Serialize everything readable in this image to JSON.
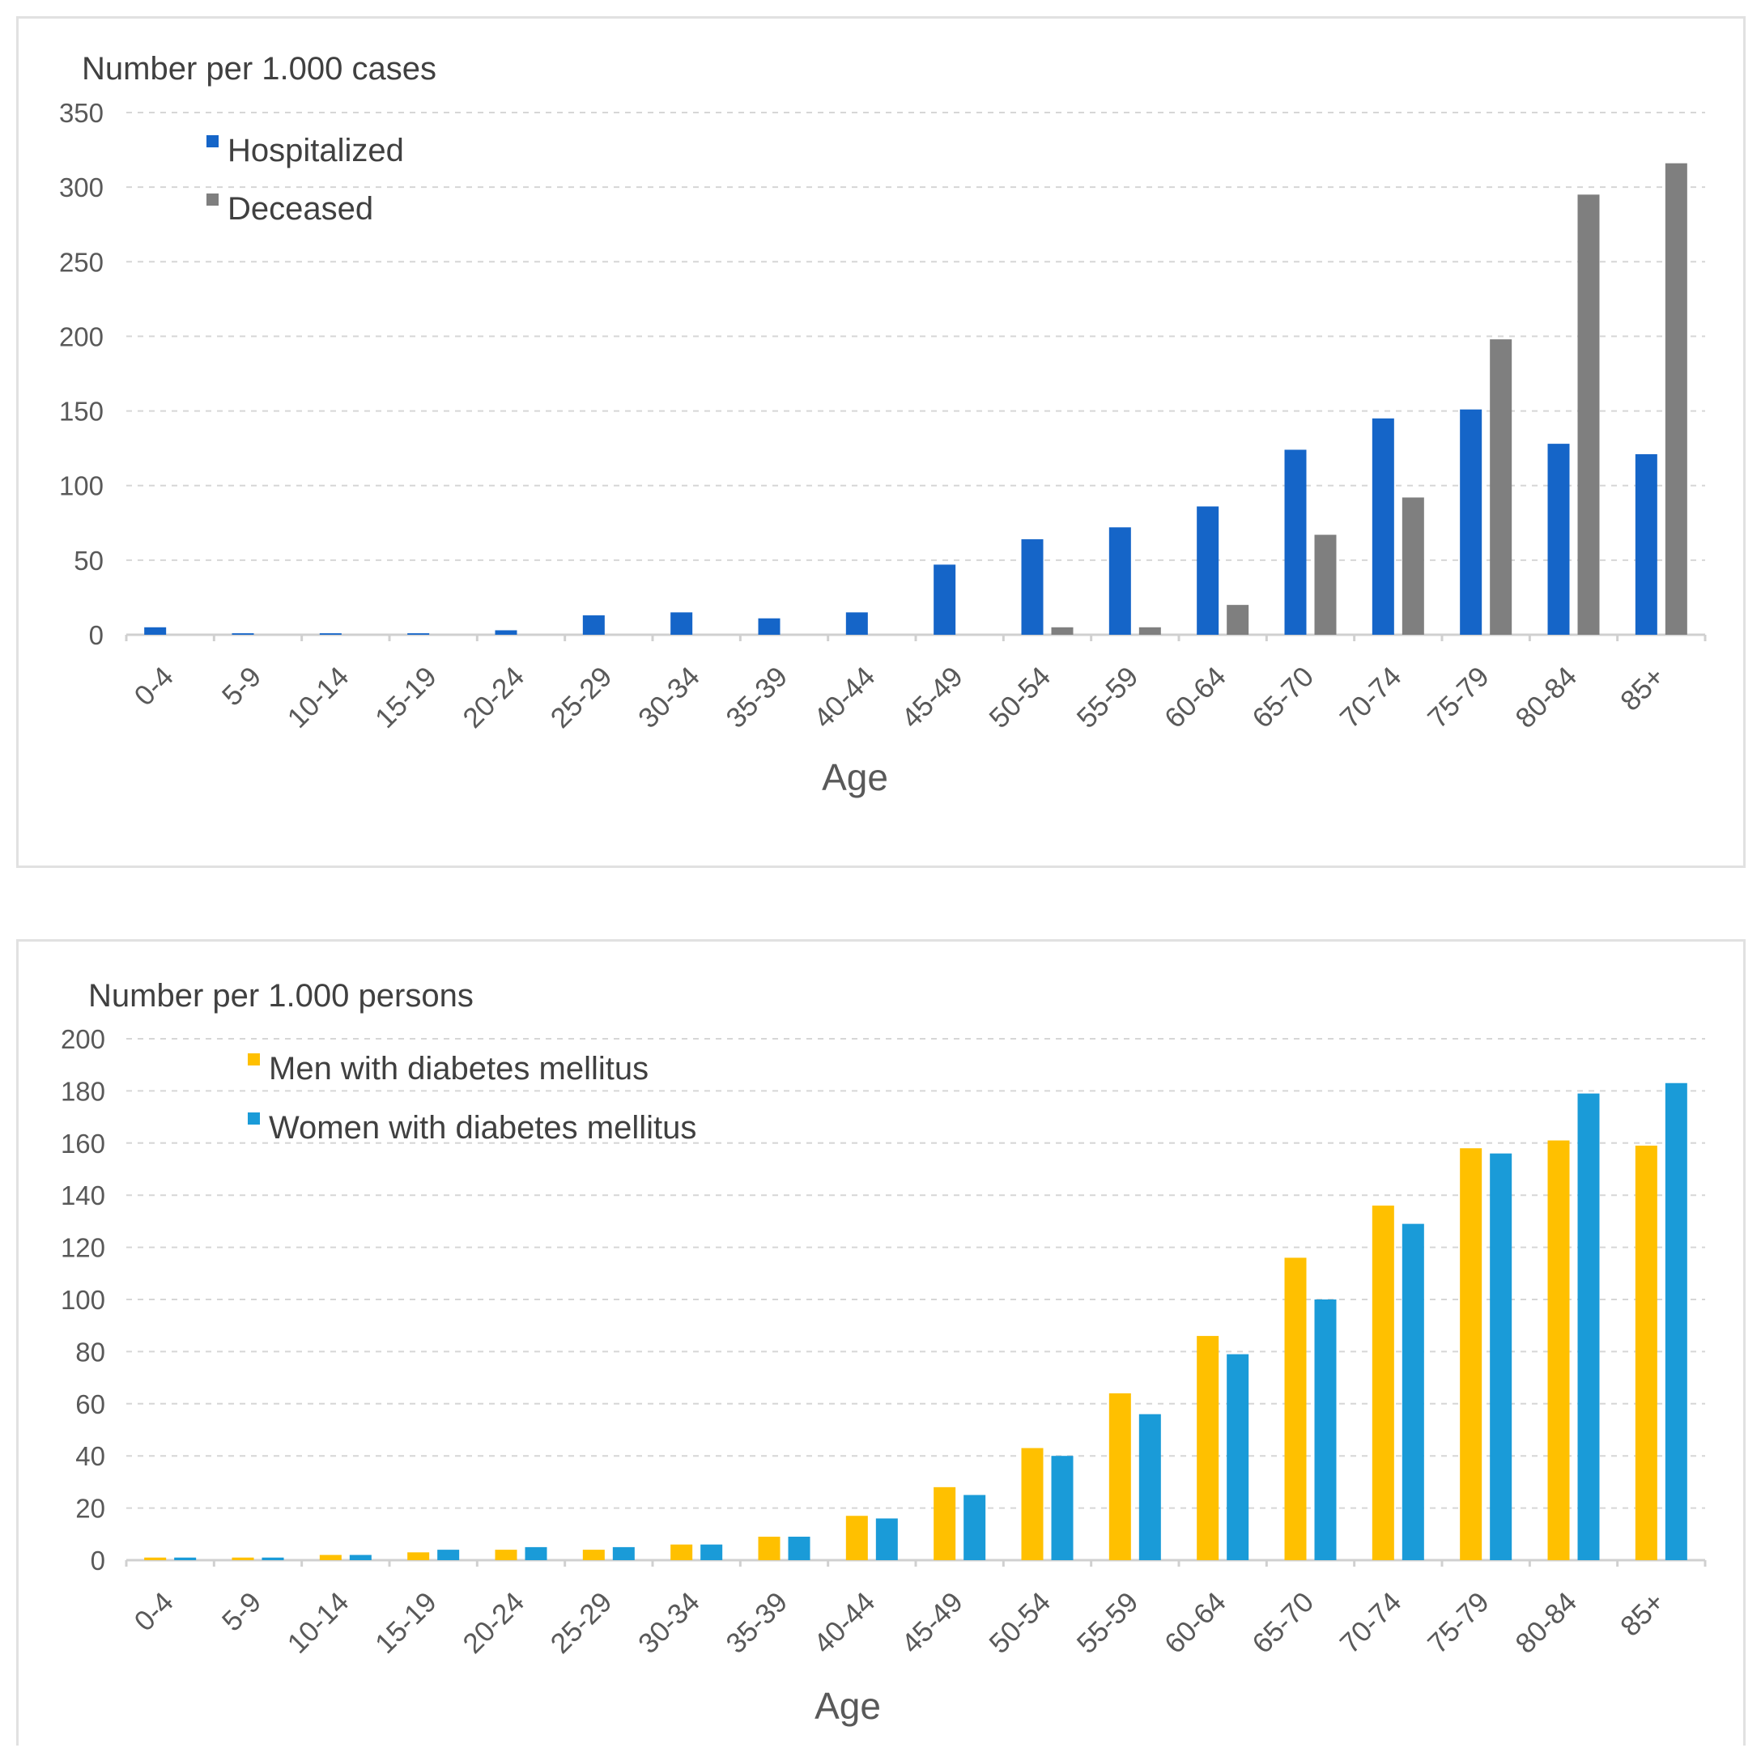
{
  "chart_data": [
    {
      "type": "bar",
      "ylabel": "Number per 1.000 cases",
      "xlabel": "Age",
      "ylim": [
        0,
        350
      ],
      "yticks": [
        0,
        50,
        100,
        150,
        200,
        250,
        300,
        350
      ],
      "grid": true,
      "legend_position": "top-left",
      "categories": [
        "0-4",
        "5-9",
        "10-14",
        "15-19",
        "20-24",
        "25-29",
        "30-34",
        "35-39",
        "40-44",
        "45-49",
        "50-54",
        "55-59",
        "60-64",
        "65-70",
        "70-74",
        "75-79",
        "80-84",
        "85+"
      ],
      "series": [
        {
          "name": "Hospitalized",
          "color": "#1565c8",
          "values": [
            5,
            1,
            1,
            1,
            3,
            13,
            15,
            11,
            15,
            47,
            64,
            72,
            86,
            124,
            145,
            151,
            128,
            121
          ]
        },
        {
          "name": "Deceased",
          "color": "#7f7f7f",
          "values": [
            0,
            0,
            0,
            0,
            0,
            0,
            0,
            0,
            0,
            0,
            5,
            5,
            20,
            67,
            92,
            198,
            295,
            316
          ]
        }
      ]
    },
    {
      "type": "bar",
      "ylabel": "Number per 1.000 persons",
      "xlabel": "Age",
      "ylim": [
        0,
        200
      ],
      "yticks": [
        0,
        20,
        40,
        60,
        80,
        100,
        120,
        140,
        160,
        180,
        200
      ],
      "grid": true,
      "legend_position": "top-left",
      "categories": [
        "0-4",
        "5-9",
        "10-14",
        "15-19",
        "20-24",
        "25-29",
        "30-34",
        "35-39",
        "40-44",
        "45-49",
        "50-54",
        "55-59",
        "60-64",
        "65-70",
        "70-74",
        "75-79",
        "80-84",
        "85+"
      ],
      "series": [
        {
          "name": "Men with diabetes mellitus",
          "color": "#ffc000",
          "values": [
            1,
            1,
            2,
            3,
            4,
            4,
            6,
            9,
            17,
            28,
            43,
            64,
            86,
            116,
            136,
            158,
            161,
            159
          ]
        },
        {
          "name": "Women with diabetes mellitus",
          "color": "#1a9bd8",
          "values": [
            1,
            1,
            2,
            4,
            5,
            5,
            6,
            9,
            16,
            25,
            40,
            56,
            79,
            100,
            129,
            156,
            179,
            183
          ]
        }
      ]
    }
  ]
}
